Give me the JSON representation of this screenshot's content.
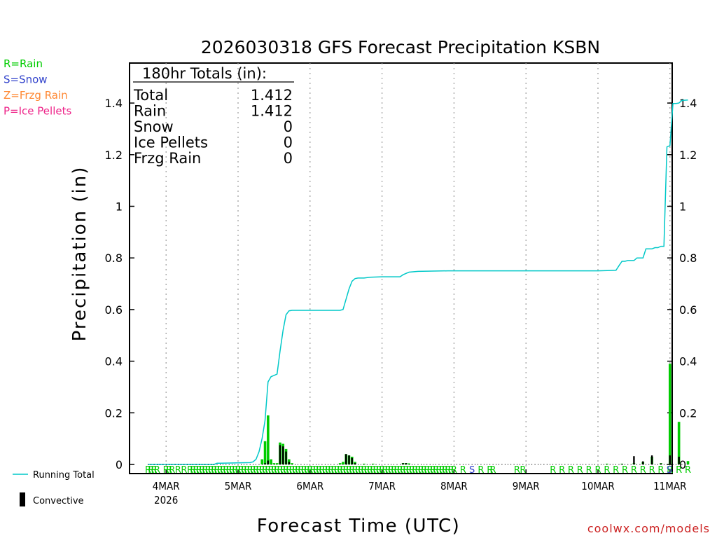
{
  "title": "2026030318 GFS Forecast Precipitation KSBN",
  "ylabel": "Precipitation (in)",
  "xlabel": "Forecast Time (UTC)",
  "credit": "coolwx.com/models",
  "colors": {
    "rain": "#00cc00",
    "snow": "#3344cc",
    "frzg_rain": "#ff8833",
    "ice_pellets": "#ee2288",
    "running_total": "#00c8c8",
    "convective": "#000000",
    "credit": "#cc2222"
  },
  "type_legend": [
    {
      "label": "R=Rain",
      "color_key": "rain"
    },
    {
      "label": "S=Snow",
      "color_key": "snow"
    },
    {
      "label": "Z=Frzg Rain",
      "color_key": "frzg_rain"
    },
    {
      "label": "P=Ice Pellets",
      "color_key": "ice_pellets"
    }
  ],
  "totals_box": {
    "header": "180hr Totals (in):",
    "rows": [
      {
        "label": "Total",
        "value": "1.412"
      },
      {
        "label": "Rain",
        "value": "1.412"
      },
      {
        "label": "Snow",
        "value": "0"
      },
      {
        "label": "Ice Pellets",
        "value": "0"
      },
      {
        "label": "Frzg Rain",
        "value": "0"
      }
    ]
  },
  "series_legend": {
    "running_total": "Running Total",
    "convective": "Convective"
  },
  "chart_data": {
    "type": "bar",
    "title": "2026030318 GFS Forecast Precipitation KSBN",
    "xlabel": "Forecast Time (UTC)",
    "ylabel": "Precipitation (in)",
    "x_unit": "forecast hour (0 = 2026-03-03 18Z)",
    "xlim": [
      0,
      180
    ],
    "ylim": [
      0,
      1.5
    ],
    "yticks": [
      0,
      0.2,
      0.4,
      0.6,
      0.8,
      1,
      1.2,
      1.4
    ],
    "ytick_labels": [
      "0",
      "0.2",
      "0.4",
      "0.6",
      "0.8",
      "1",
      "1.2",
      "1.4"
    ],
    "xticks": [
      {
        "hour": 6,
        "label": "4MAR",
        "sublabel": "2026"
      },
      {
        "hour": 30,
        "label": "5MAR"
      },
      {
        "hour": 54,
        "label": "6MAR"
      },
      {
        "hour": 78,
        "label": "7MAR"
      },
      {
        "hour": 102,
        "label": "8MAR"
      },
      {
        "hour": 126,
        "label": "9MAR"
      },
      {
        "hour": 150,
        "label": "10MAR"
      },
      {
        "hour": 174,
        "label": "11MAR"
      }
    ],
    "grid": "vertical dotted at day boundaries",
    "series": [
      {
        "name": "Precipitation (interval)",
        "kind": "bar",
        "color_key": "rain",
        "points": [
          {
            "hour": 38.0,
            "value": 0.02
          },
          {
            "hour": 39.0,
            "value": 0.09
          },
          {
            "hour": 40.0,
            "value": 0.19
          },
          {
            "hour": 41.0,
            "value": 0.02
          },
          {
            "hour": 42.0,
            "value": 0.005
          },
          {
            "hour": 43.0,
            "value": 0.005
          },
          {
            "hour": 44.0,
            "value": 0.085
          },
          {
            "hour": 45.0,
            "value": 0.08
          },
          {
            "hour": 46.0,
            "value": 0.06
          },
          {
            "hour": 47.0,
            "value": 0.02
          },
          {
            "hour": 48.0,
            "value": 0.005
          },
          {
            "hour": 64.0,
            "value": 0.005
          },
          {
            "hour": 65.0,
            "value": 0.01
          },
          {
            "hour": 66.0,
            "value": 0.04
          },
          {
            "hour": 67.0,
            "value": 0.035
          },
          {
            "hour": 68.0,
            "value": 0.03
          },
          {
            "hour": 69.0,
            "value": 0.01
          },
          {
            "hour": 72.0,
            "value": 0.003
          },
          {
            "hour": 75.0,
            "value": 0.003
          },
          {
            "hour": 85.0,
            "value": 0.005
          },
          {
            "hour": 86.0,
            "value": 0.005
          },
          {
            "hour": 87.0,
            "value": 0.004
          },
          {
            "hour": 153.0,
            "value": 0.003
          },
          {
            "hour": 158.0,
            "value": 0.003
          },
          {
            "hour": 162.0,
            "value": 0.005
          },
          {
            "hour": 165.0,
            "value": 0.01
          },
          {
            "hour": 168.0,
            "value": 0.03
          },
          {
            "hour": 171.0,
            "value": 0.005
          },
          {
            "hour": 174.0,
            "value": 0.39
          },
          {
            "hour": 177.0,
            "value": 0.165
          },
          {
            "hour": 180.0,
            "value": 0.013
          }
        ]
      },
      {
        "name": "Convective",
        "kind": "bar",
        "color_key": "convective",
        "points": [
          {
            "hour": 39.0,
            "value": 0.005
          },
          {
            "hour": 40.0,
            "value": 0.015
          },
          {
            "hour": 44.0,
            "value": 0.075
          },
          {
            "hour": 45.0,
            "value": 0.07
          },
          {
            "hour": 46.0,
            "value": 0.05
          },
          {
            "hour": 47.0,
            "value": 0.01
          },
          {
            "hour": 66.0,
            "value": 0.04
          },
          {
            "hour": 67.0,
            "value": 0.035
          },
          {
            "hour": 68.0,
            "value": 0.025
          },
          {
            "hour": 69.0,
            "value": 0.005
          },
          {
            "hour": 85.0,
            "value": 0.005
          },
          {
            "hour": 86.0,
            "value": 0.005
          },
          {
            "hour": 158.0,
            "value": 0.002
          },
          {
            "hour": 162.0,
            "value": 0.032
          },
          {
            "hour": 165.0,
            "value": 0.012
          },
          {
            "hour": 168.0,
            "value": 0.035
          },
          {
            "hour": 171.0,
            "value": 0.004
          },
          {
            "hour": 174.0,
            "value": 0.035
          },
          {
            "hour": 177.0,
            "value": 0.03
          }
        ]
      },
      {
        "name": "Running Total",
        "kind": "line",
        "color_key": "running_total",
        "x": [
          0,
          22,
          23,
          24,
          34,
          35,
          36,
          37,
          38,
          39,
          40,
          41,
          42,
          43,
          44,
          45,
          46,
          47,
          48,
          52,
          60,
          64,
          65,
          66,
          67,
          68,
          69,
          70,
          72,
          74,
          78,
          84,
          85,
          86,
          87,
          90,
          100,
          120,
          150,
          156,
          157,
          158,
          159,
          160,
          162,
          163,
          165,
          166,
          168,
          169,
          170,
          171,
          172,
          173,
          174,
          175,
          176,
          177,
          178,
          180
        ],
        "y": [
          0,
          0,
          0.005,
          0.005,
          0.007,
          0.01,
          0.02,
          0.05,
          0.1,
          0.17,
          0.32,
          0.34,
          0.345,
          0.35,
          0.44,
          0.52,
          0.58,
          0.595,
          0.597,
          0.597,
          0.597,
          0.597,
          0.6,
          0.64,
          0.68,
          0.71,
          0.72,
          0.722,
          0.722,
          0.725,
          0.727,
          0.727,
          0.735,
          0.74,
          0.745,
          0.748,
          0.75,
          0.75,
          0.75,
          0.752,
          0.77,
          0.787,
          0.787,
          0.79,
          0.79,
          0.8,
          0.8,
          0.835,
          0.835,
          0.84,
          0.84,
          0.845,
          0.845,
          1.23,
          1.235,
          1.398,
          1.398,
          1.4,
          1.41,
          1.412
        ]
      }
    ],
    "precip_type_row": {
      "description": "precipitation type letters drawn along the bottom of the plot",
      "rain_hours": [
        0,
        1,
        2,
        3,
        6,
        7,
        8,
        10,
        12,
        14,
        15,
        16,
        17,
        18,
        19,
        20,
        21,
        22,
        23,
        24,
        25,
        26,
        27,
        28,
        29,
        30,
        31,
        32,
        33,
        34,
        35,
        36,
        37,
        38,
        39,
        40,
        41,
        42,
        43,
        44,
        45,
        46,
        47,
        48,
        49,
        50,
        51,
        52,
        53,
        54,
        55,
        56,
        57,
        58,
        59,
        60,
        61,
        62,
        63,
        64,
        65,
        66,
        67,
        68,
        69,
        70,
        71,
        72,
        73,
        74,
        75,
        76,
        77,
        78,
        79,
        80,
        81,
        82,
        83,
        84,
        85,
        86,
        87,
        88,
        89,
        90,
        91,
        92,
        93,
        94,
        95,
        96,
        97,
        98,
        99,
        100,
        101,
        102,
        105,
        111,
        114,
        115,
        123,
        125,
        135,
        138,
        141,
        144,
        147,
        150,
        153,
        156,
        159,
        162,
        165,
        168,
        171,
        174,
        177,
        180
      ],
      "snow_hours": [
        108,
        183
      ],
      "label_rain": "R",
      "label_snow": "S"
    }
  }
}
